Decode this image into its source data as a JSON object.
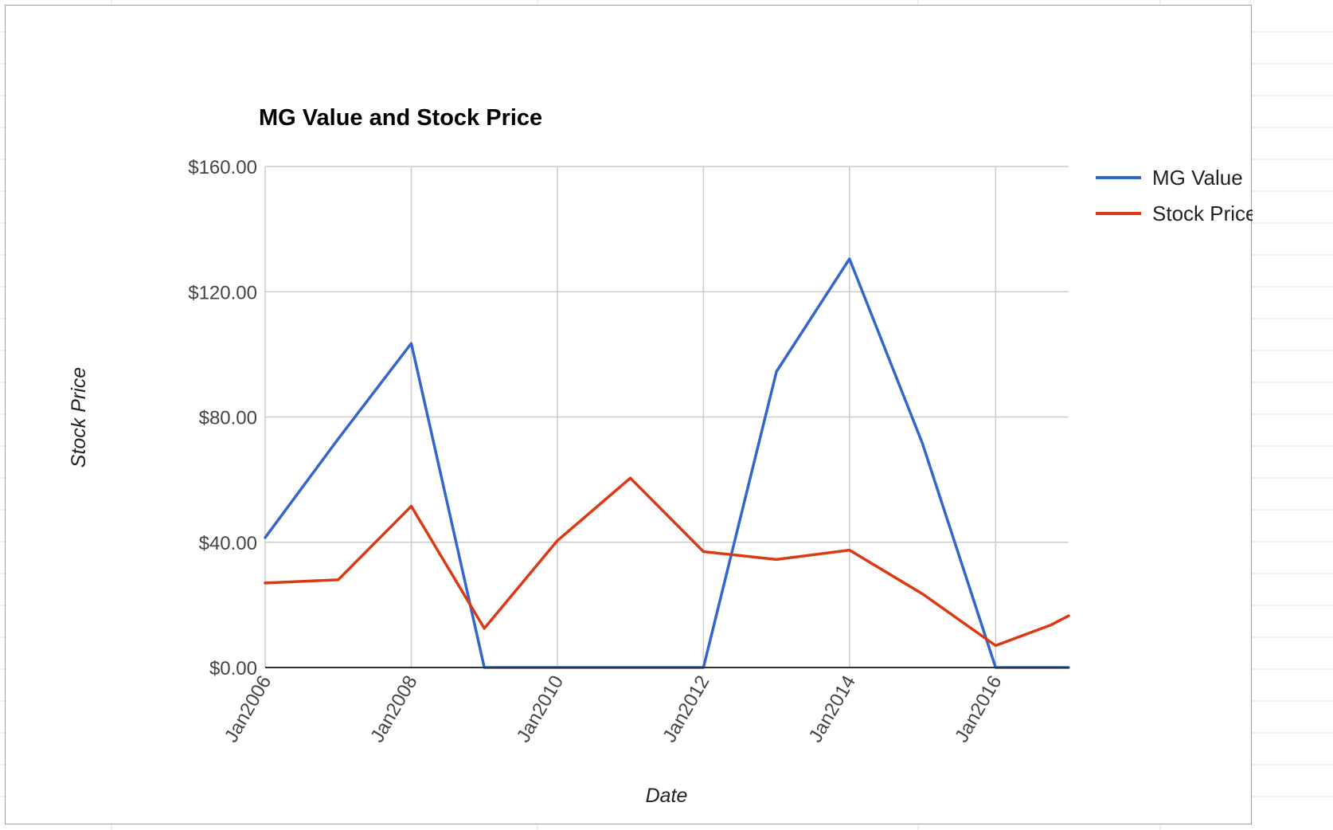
{
  "colors": {
    "background": "#ffffff",
    "gridline": "#cccccc",
    "baseline": "#333333",
    "series_mg_value": "#3366cc",
    "series_stock_price": "#dc3912"
  },
  "chart_data": {
    "type": "line",
    "title": "MG Value and Stock Price",
    "xlabel": "Date",
    "ylabel": "Stock Price",
    "ylim": [
      0,
      160
    ],
    "y_ticks": [
      "$160.00",
      "$120.00",
      "$80.00",
      "$40.00",
      "$0.00"
    ],
    "y_tick_values": [
      160,
      120,
      80,
      40,
      0
    ],
    "x_ticks": [
      "Jan2006",
      "Jan2008",
      "Jan2010",
      "Jan2012",
      "Jan2014",
      "Jan2016"
    ],
    "x_tick_values": [
      "2006-01",
      "2008-01",
      "2010-01",
      "2012-01",
      "2014-01",
      "2016-01"
    ],
    "xlim": [
      "2006-01",
      "2017-01"
    ],
    "grid": true,
    "legend_position": "right",
    "series": [
      {
        "name": "MG Value",
        "color": "#3366cc",
        "points": [
          {
            "x": "2006-01",
            "y": 41.5
          },
          {
            "x": "2007-01",
            "y": 73
          },
          {
            "x": "2008-01",
            "y": 103.5
          },
          {
            "x": "2009-01",
            "y": 0
          },
          {
            "x": "2010-01",
            "y": 0
          },
          {
            "x": "2011-01",
            "y": 0
          },
          {
            "x": "2012-01",
            "y": 0
          },
          {
            "x": "2013-01",
            "y": 94.5
          },
          {
            "x": "2014-01",
            "y": 130.5
          },
          {
            "x": "2015-01",
            "y": 71.5
          },
          {
            "x": "2016-01",
            "y": 0
          },
          {
            "x": "2017-01",
            "y": 0
          }
        ]
      },
      {
        "name": "Stock Price",
        "color": "#dc3912",
        "points": [
          {
            "x": "2006-01",
            "y": 27
          },
          {
            "x": "2007-01",
            "y": 28
          },
          {
            "x": "2008-01",
            "y": 51.5
          },
          {
            "x": "2009-01",
            "y": 12.5
          },
          {
            "x": "2010-01",
            "y": 40.5
          },
          {
            "x": "2011-01",
            "y": 60.5
          },
          {
            "x": "2012-01",
            "y": 37
          },
          {
            "x": "2013-01",
            "y": 34.5
          },
          {
            "x": "2014-01",
            "y": 37.5
          },
          {
            "x": "2015-01",
            "y": 23.5
          },
          {
            "x": "2016-01",
            "y": 7
          },
          {
            "x": "2016-10",
            "y": 13.5
          },
          {
            "x": "2017-01",
            "y": 16.5
          }
        ]
      }
    ]
  }
}
